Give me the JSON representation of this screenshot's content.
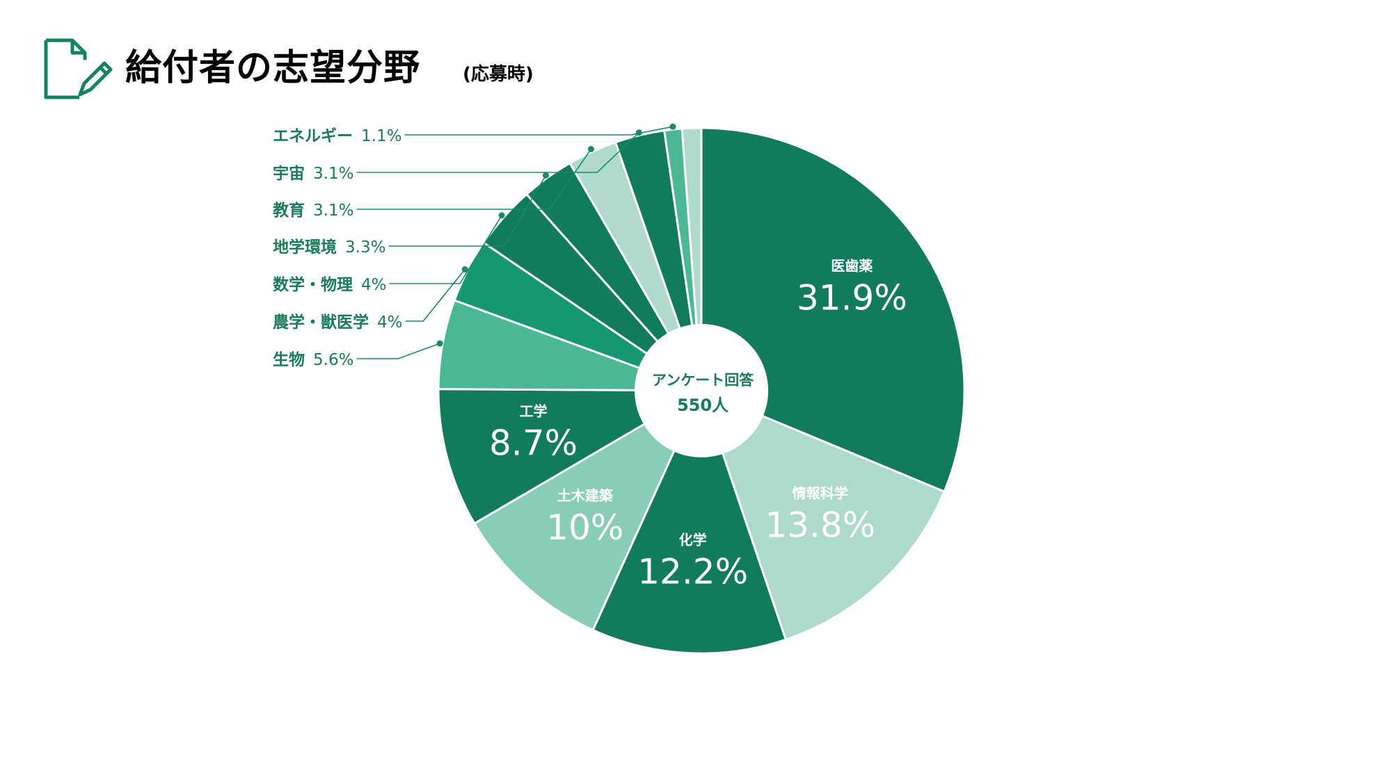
{
  "header": {
    "title": "給付者の志望分野",
    "subtitle": "(応募時)"
  },
  "colors": {
    "accent": "#13825f",
    "text_dark": "#1a7a5e",
    "leader_line": "#1a8a65",
    "center_fill": "#ffffff"
  },
  "icons": {
    "header_icon": "document-pencil-icon"
  },
  "chart_data": {
    "type": "pie",
    "variant": "donut",
    "title": "給付者の志望分野",
    "subtitle": "(応募時)",
    "center_label": "アンケート回答",
    "center_value": "550人",
    "unit": "%",
    "slices": [
      {
        "label": "医歯薬",
        "value": 31.9,
        "display": "31.9%",
        "color": "#127b5e",
        "label_style": "inside-dark"
      },
      {
        "label": "情報科学",
        "value": 13.8,
        "display": "13.8%",
        "color": "#aedacb",
        "label_style": "inside-light"
      },
      {
        "label": "化学",
        "value": 12.2,
        "display": "12.2%",
        "color": "#127b5e",
        "label_style": "inside-dark"
      },
      {
        "label": "土木建築",
        "value": 10,
        "display": "10%",
        "color": "#8acdb5",
        "label_style": "inside-light"
      },
      {
        "label": "工学",
        "value": 8.7,
        "display": "8.7%",
        "color": "#127b5e",
        "label_style": "inside-dark"
      },
      {
        "label": "生物",
        "value": 5.6,
        "display": "5.6%",
        "color": "#49b893",
        "label_style": "outside"
      },
      {
        "label": "農学・獣医学",
        "value": 4,
        "display": "4%",
        "color": "#169671",
        "label_style": "outside"
      },
      {
        "label": "数学・物理",
        "value": 4,
        "display": "4%",
        "color": "#127b5e",
        "label_style": "outside"
      },
      {
        "label": "地学環境",
        "value": 3.3,
        "display": "3.3%",
        "color": "#127b5e",
        "label_style": "outside"
      },
      {
        "label": "教育",
        "value": 3.1,
        "display": "3.1%",
        "color": "#b0dbcc",
        "label_style": "outside"
      },
      {
        "label": "宇宙",
        "value": 3.1,
        "display": "3.1%",
        "color": "#127b5e",
        "label_style": "outside"
      },
      {
        "label": "エネルギー",
        "value": 1.1,
        "display": "1.1%",
        "color": "#49b893",
        "label_style": "outside"
      },
      {
        "label": "",
        "value": 1.2,
        "display": "",
        "color": "#b0dbcc",
        "label_style": "none"
      }
    ],
    "outside_label_order": [
      "エネルギー",
      "宇宙",
      "教育",
      "地学環境",
      "数学・物理",
      "農学・獣医学",
      "生物"
    ],
    "legend": "none"
  }
}
